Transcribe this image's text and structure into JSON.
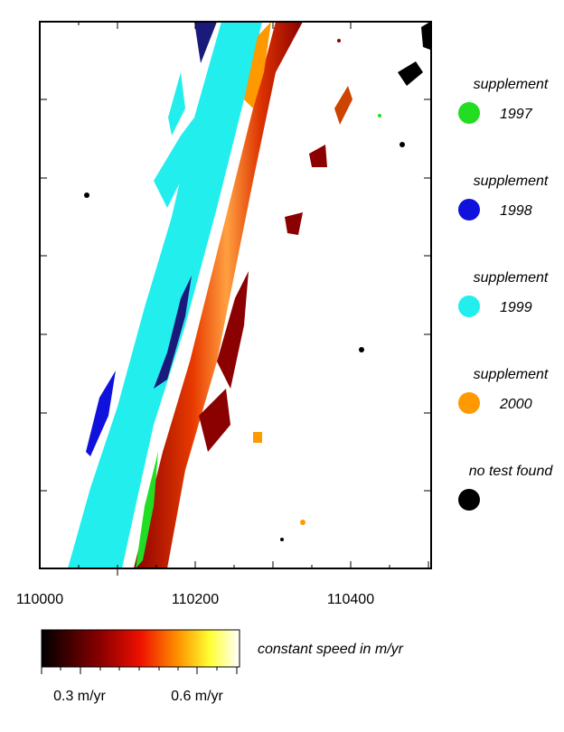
{
  "map": {
    "x_ticks": [
      "110000",
      "110200",
      "110400"
    ],
    "legend": [
      {
        "label": "supplement",
        "year": "1997",
        "color": "#22dd22"
      },
      {
        "label": "supplement",
        "year": "1998",
        "color": "#1111dd"
      },
      {
        "label": "supplement",
        "year": "1999",
        "color": "#22eeee"
      },
      {
        "label": "supplement",
        "year": "2000",
        "color": "#ff9900"
      },
      {
        "label": "no test found",
        "color": "#000000"
      }
    ],
    "colorbar": {
      "label": "constant speed in m/yr",
      "ticks": [
        "0.3 m/yr",
        "0.6 m/yr"
      ]
    }
  }
}
